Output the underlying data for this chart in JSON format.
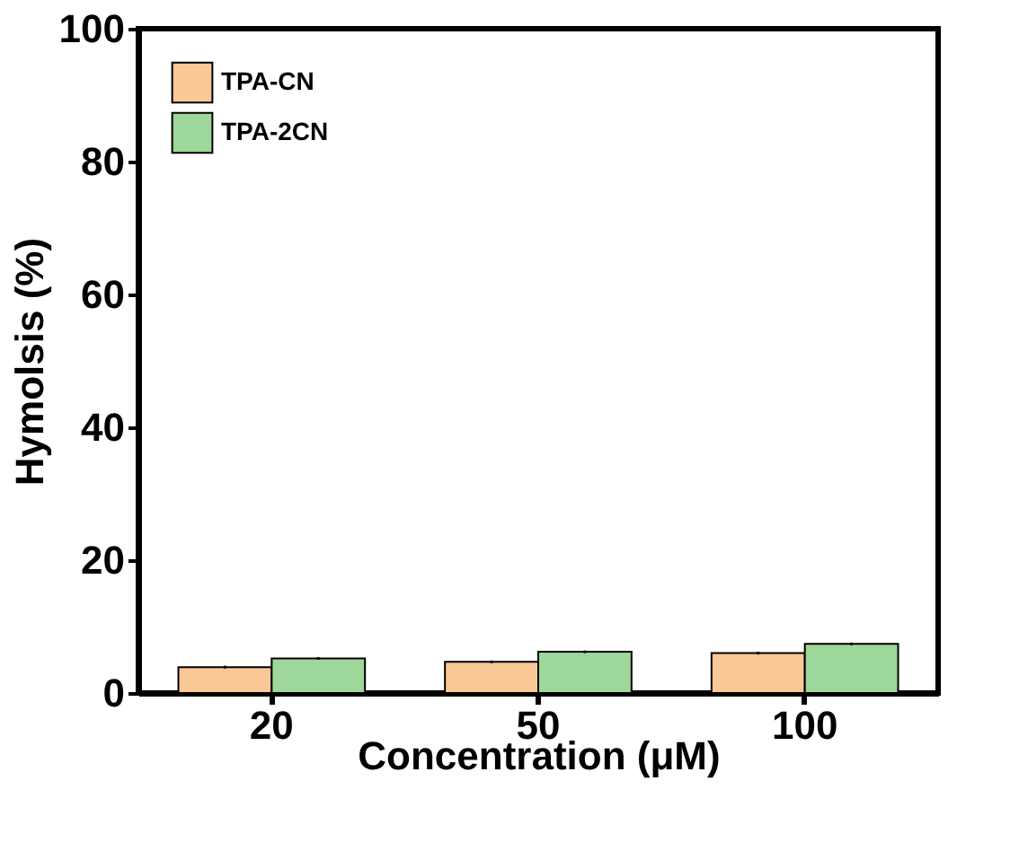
{
  "chart_data": {
    "type": "bar",
    "xlabel": "Concentration (μM)",
    "ylabel": "Hymolsis (%)",
    "categories": [
      "20",
      "50",
      "100"
    ],
    "series": [
      {
        "name": "TPA-CN",
        "color": "#fac896",
        "values": [
          3.9,
          4.7,
          6.0
        ],
        "errors": [
          0.2,
          0.2,
          0.2
        ]
      },
      {
        "name": "TPA-2CN",
        "color": "#9ed79a",
        "values": [
          5.2,
          6.2,
          7.4
        ],
        "errors": [
          0.2,
          0.2,
          0.2
        ]
      }
    ],
    "ylim": [
      0,
      100
    ],
    "yticks": [
      0,
      20,
      40,
      60,
      80,
      100
    ],
    "grid": false,
    "legend": "top left"
  }
}
